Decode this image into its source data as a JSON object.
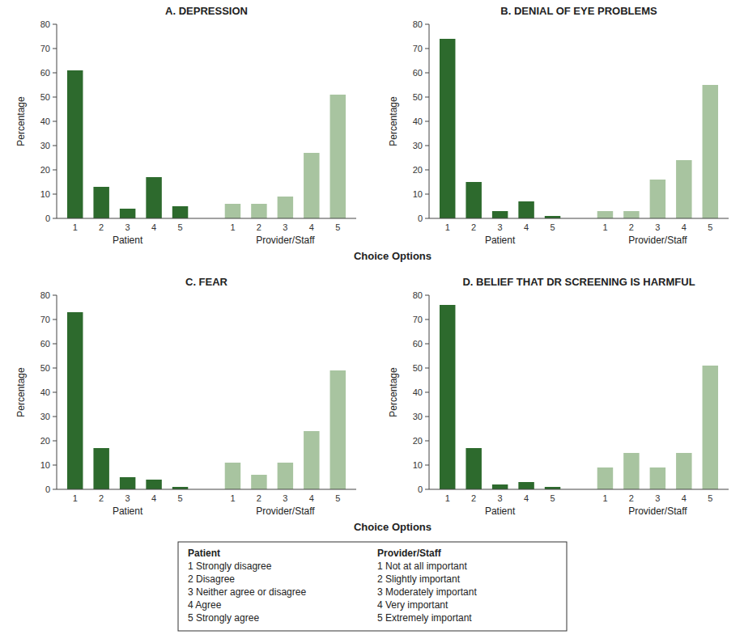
{
  "chart_data": [
    {
      "type": "bar",
      "title": "A. DEPRESSION",
      "ylabel": "Percentage",
      "categories": [
        "1",
        "2",
        "3",
        "4",
        "5"
      ],
      "series": [
        {
          "name": "Patient",
          "color": "#2d6a2d",
          "values": [
            61,
            13,
            4,
            17,
            5
          ]
        },
        {
          "name": "Provider/Staff",
          "color": "#a8c4a0",
          "values": [
            6,
            6,
            9,
            27,
            51
          ]
        }
      ],
      "ylim": [
        0,
        80
      ],
      "yticks": [
        0,
        10,
        20,
        30,
        40,
        50,
        60,
        70,
        80
      ],
      "grid": false
    },
    {
      "type": "bar",
      "title": "B. DENIAL OF EYE PROBLEMS",
      "ylabel": "Percentage",
      "categories": [
        "1",
        "2",
        "3",
        "4",
        "5"
      ],
      "series": [
        {
          "name": "Patient",
          "color": "#2d6a2d",
          "values": [
            74,
            15,
            3,
            7,
            1
          ]
        },
        {
          "name": "Provider/Staff",
          "color": "#a8c4a0",
          "values": [
            3,
            3,
            16,
            24,
            55
          ]
        }
      ],
      "ylim": [
        0,
        80
      ],
      "yticks": [
        0,
        10,
        20,
        30,
        40,
        50,
        60,
        70,
        80
      ],
      "grid": false
    },
    {
      "type": "bar",
      "title": "C. FEAR",
      "ylabel": "Percentage",
      "categories": [
        "1",
        "2",
        "3",
        "4",
        "5"
      ],
      "series": [
        {
          "name": "Patient",
          "color": "#2d6a2d",
          "values": [
            73,
            17,
            5,
            4,
            1
          ]
        },
        {
          "name": "Provider/Staff",
          "color": "#a8c4a0",
          "values": [
            11,
            6,
            11,
            24,
            49
          ]
        }
      ],
      "ylim": [
        0,
        80
      ],
      "yticks": [
        0,
        10,
        20,
        30,
        40,
        50,
        60,
        70,
        80
      ],
      "grid": false
    },
    {
      "type": "bar",
      "title": "D. BELIEF THAT DR SCREENING IS HARMFUL",
      "ylabel": "Percentage",
      "categories": [
        "1",
        "2",
        "3",
        "4",
        "5"
      ],
      "series": [
        {
          "name": "Patient",
          "color": "#2d6a2d",
          "values": [
            76,
            17,
            2,
            3,
            1
          ]
        },
        {
          "name": "Provider/Staff",
          "color": "#a8c4a0",
          "values": [
            9,
            15,
            9,
            15,
            51
          ]
        }
      ],
      "ylim": [
        0,
        80
      ],
      "yticks": [
        0,
        10,
        20,
        30,
        40,
        50,
        60,
        70,
        80
      ],
      "grid": false
    }
  ],
  "xlabel": "Choice Options",
  "annotations": [
    {
      "title": "Patient",
      "lines": [
        "1 Strongly disagree",
        "2 Disagree",
        "3 Neither agree or disagree",
        "4 Agree",
        "5 Strongly agree"
      ]
    },
    {
      "title": "Provider/Staff",
      "lines": [
        "1 Not at all important",
        "2 Slightly important",
        "3 Moderately important",
        "4 Very important",
        "5 Extremely important"
      ]
    }
  ]
}
